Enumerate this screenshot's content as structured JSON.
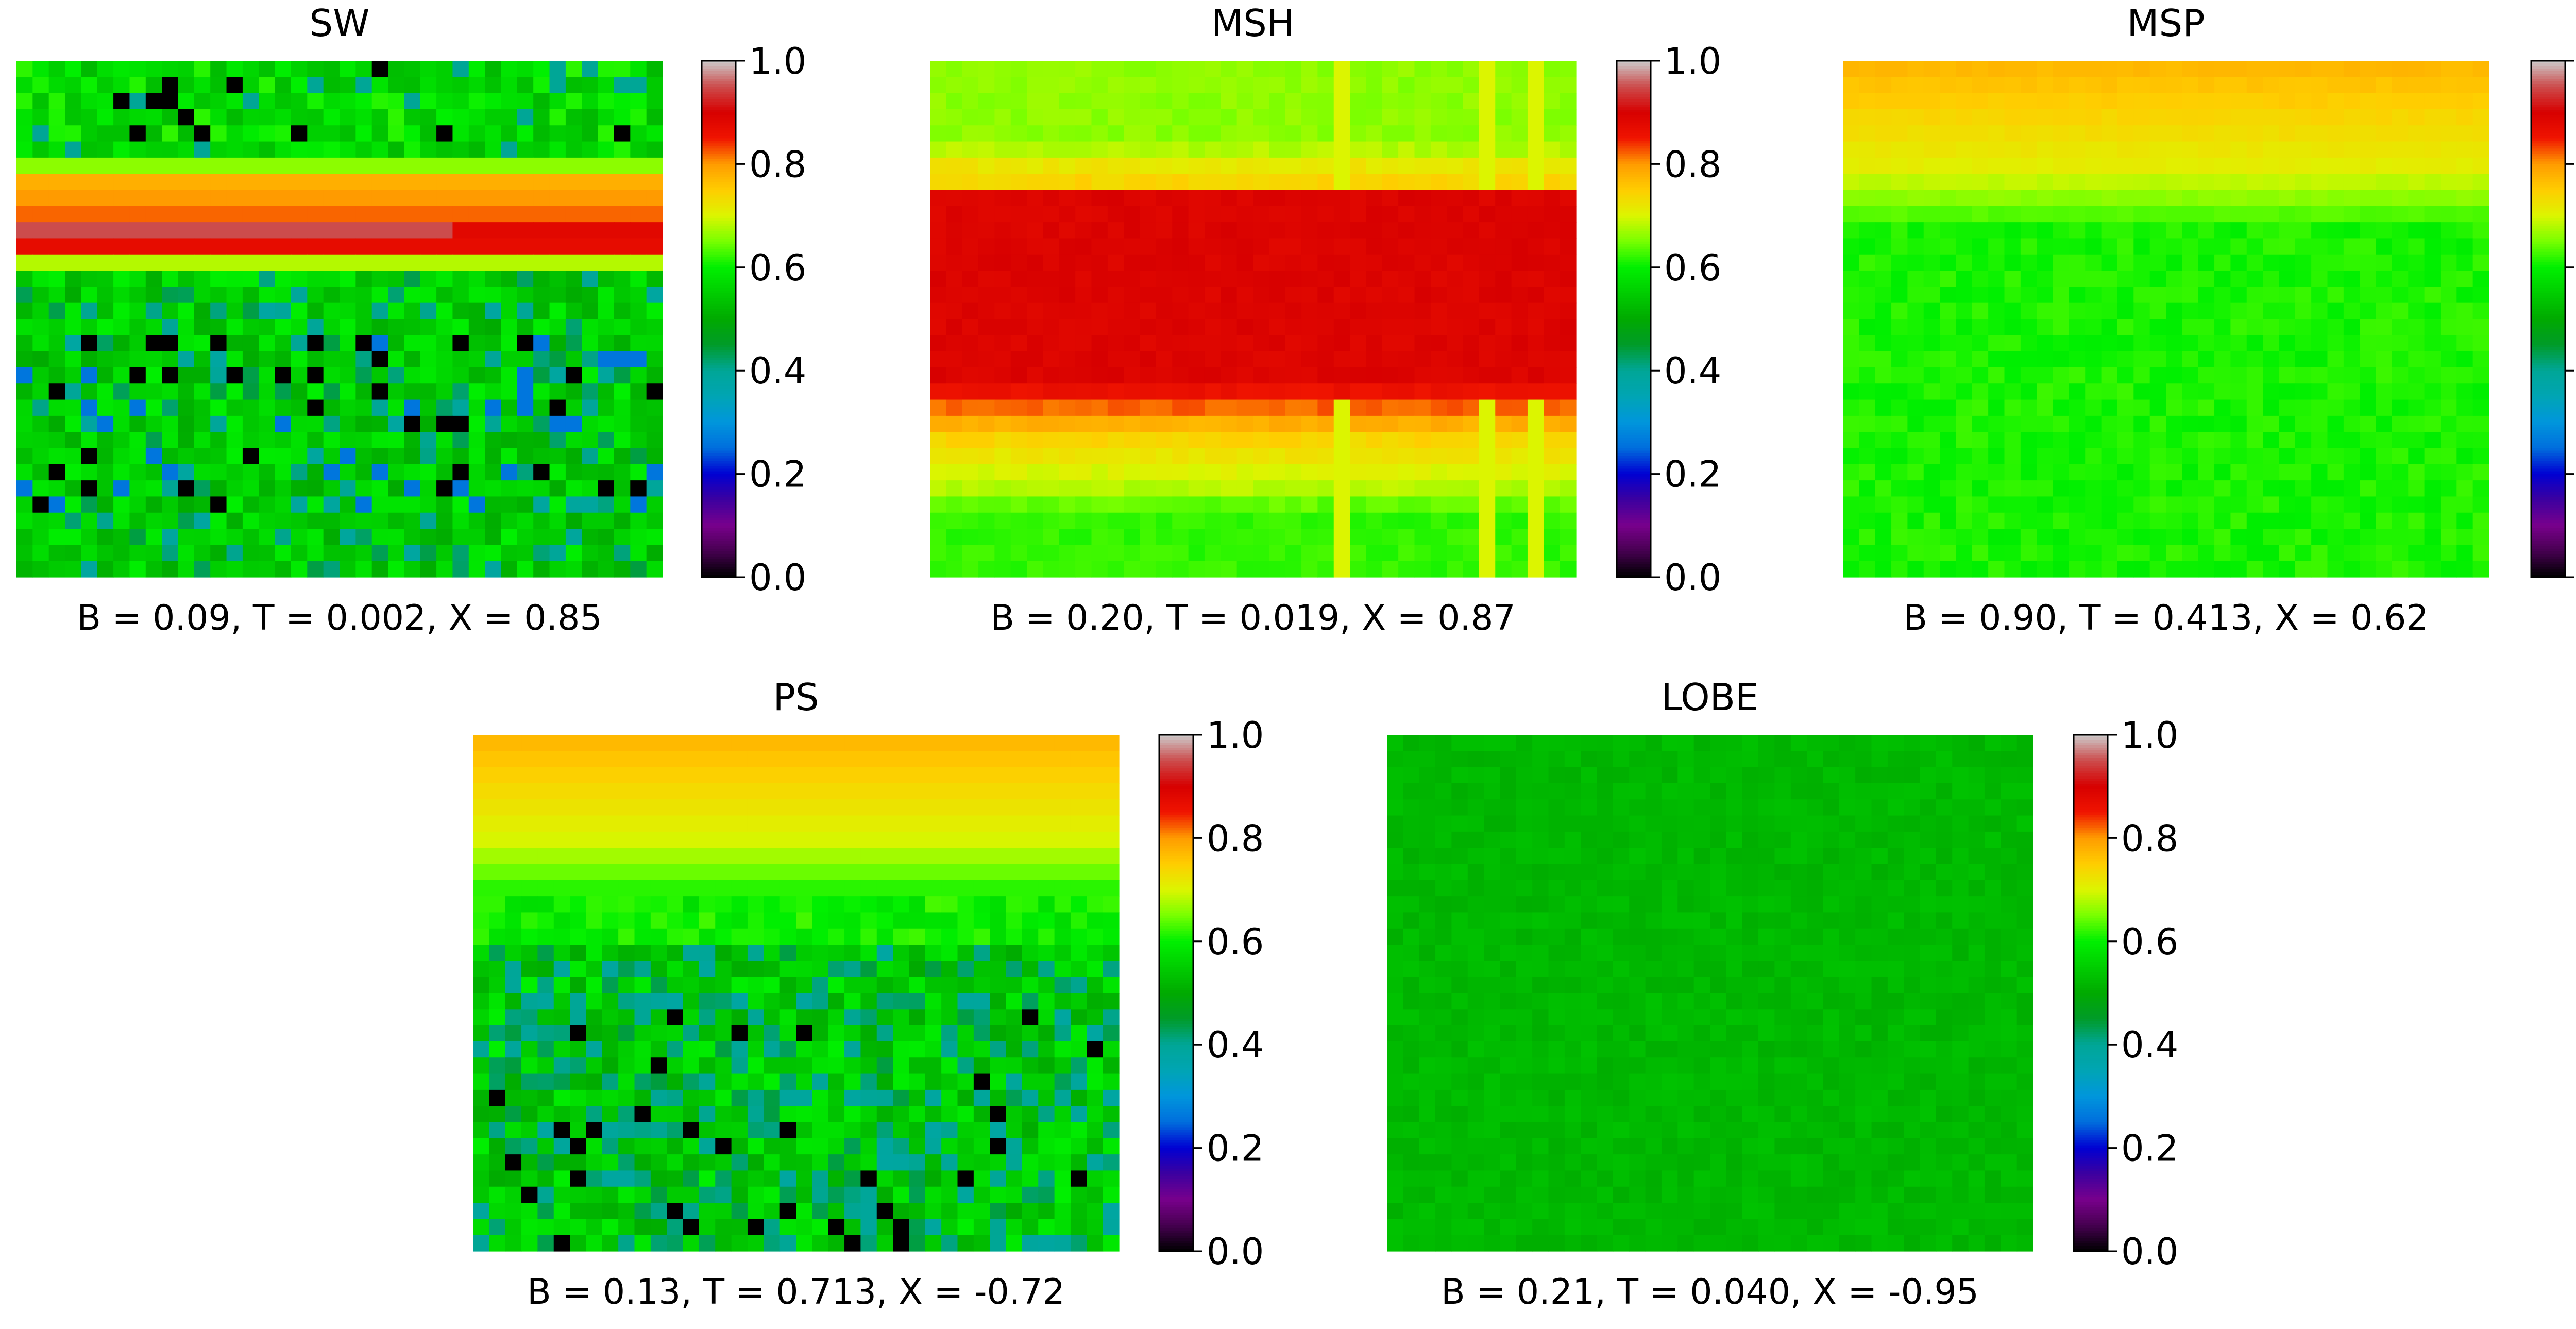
{
  "figure": {
    "description_note": "",
    "colormap": "nipy_spectral",
    "colorbar_ticks": [
      "0.0",
      "0.2",
      "0.4",
      "0.6",
      "0.8",
      "1.0"
    ]
  },
  "chart_data": [
    {
      "type": "heatmap",
      "title": "SW",
      "caption": "B = 0.09, T = 0.002, X = 0.85",
      "grid": {
        "rows": 32,
        "cols": 40
      },
      "vlim": [
        0,
        1
      ],
      "row_profile": "sw"
    },
    {
      "type": "heatmap",
      "title": "MSH",
      "caption": "B = 0.20, T = 0.019, X = 0.87",
      "grid": {
        "rows": 32,
        "cols": 40
      },
      "vlim": [
        0,
        1
      ],
      "row_profile": "msh"
    },
    {
      "type": "heatmap",
      "title": "MSP",
      "caption": "B = 0.90, T = 0.413, X = 0.62",
      "grid": {
        "rows": 32,
        "cols": 40
      },
      "vlim": [
        0,
        1
      ],
      "row_profile": "msp"
    },
    {
      "type": "heatmap",
      "title": "PS",
      "caption": "B = 0.13, T = 0.713, X = -0.72",
      "grid": {
        "rows": 32,
        "cols": 40
      },
      "vlim": [
        0,
        1
      ],
      "row_profile": "ps"
    },
    {
      "type": "heatmap",
      "title": "LOBE",
      "caption": "B = 0.21, T = 0.040, X = -0.95",
      "grid": {
        "rows": 32,
        "cols": 40
      },
      "vlim": [
        0,
        1
      ],
      "row_profile": "lobe"
    }
  ]
}
